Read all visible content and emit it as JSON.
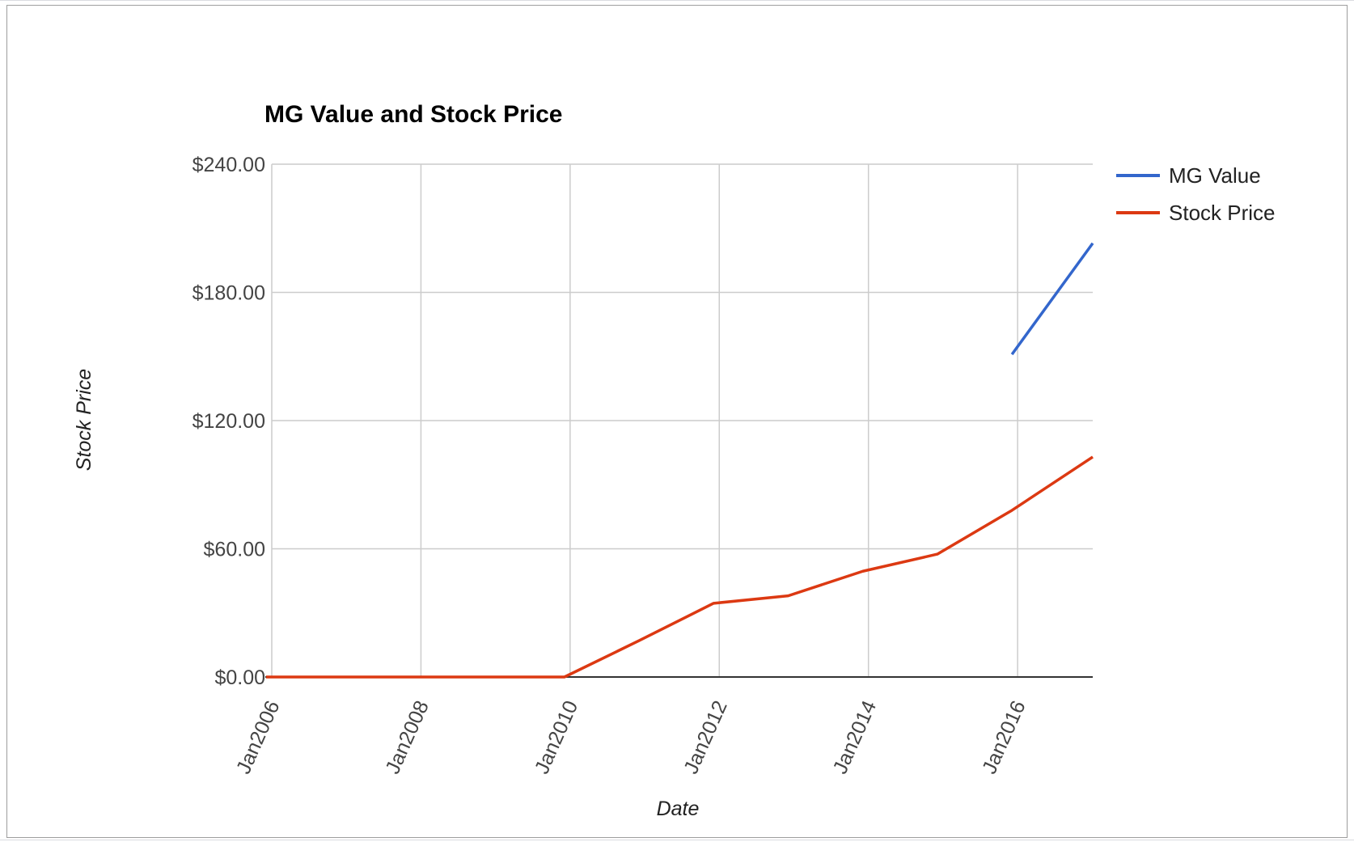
{
  "chart_data": {
    "type": "line",
    "title": "MG Value and Stock Price",
    "xlabel": "Date",
    "ylabel": "Stock Price",
    "ylim": [
      0,
      240
    ],
    "y_ticks": [
      "$0.00",
      "$60.00",
      "$120.00",
      "$180.00",
      "$240.00"
    ],
    "y_tick_values": [
      0,
      60,
      120,
      180,
      240
    ],
    "x_ticks": [
      "Jan2006",
      "Jan2008",
      "Jan2010",
      "Jan2012",
      "Jan2014",
      "Jan2016"
    ],
    "x_tick_dates": [
      "2006-01",
      "2008-01",
      "2010-01",
      "2012-01",
      "2014-01",
      "2016-01"
    ],
    "x_range": [
      "2006-01",
      "2017-02"
    ],
    "grid": true,
    "legend_position": "right",
    "series": [
      {
        "name": "MG Value",
        "color": "#3366cc",
        "x": [
          "2016-01",
          "2017-02"
        ],
        "y": [
          151,
          203
        ]
      },
      {
        "name": "Stock Price",
        "color": "#dc3912",
        "x": [
          "2006-01",
          "2007-01",
          "2008-01",
          "2009-01",
          "2010-01",
          "2011-01",
          "2012-01",
          "2013-01",
          "2014-01",
          "2015-01",
          "2016-01",
          "2017-02"
        ],
        "y": [
          0,
          0,
          0,
          0,
          0,
          17,
          34.5,
          38,
          49.5,
          57.5,
          78,
          103
        ]
      }
    ]
  }
}
